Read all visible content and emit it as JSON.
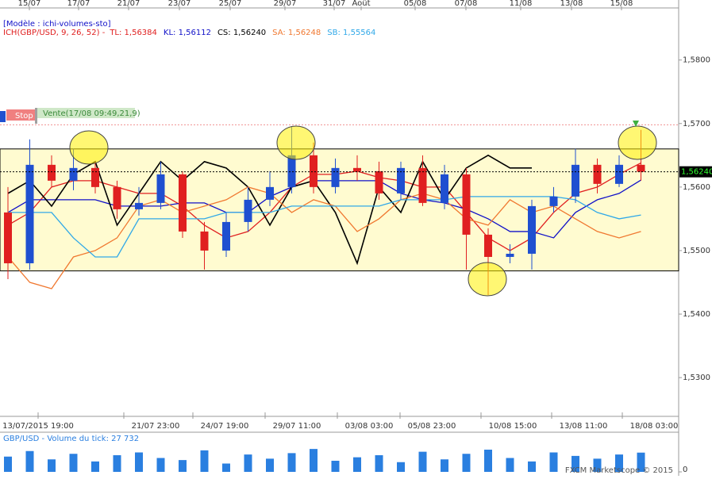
{
  "chart_data": {
    "type": "candlestick",
    "model": "[Modèle : ichi-volumes-sto]",
    "indicator": "ICH(GBP/USD, 9, 26, 52) -",
    "signal": "Vente(17/08 09:49,21,9)",
    "stop": {
      "label": "Stop",
      "value": 1.5698
    },
    "copyright": "FXCM Marketscope © 2015",
    "top_labels": [
      "15/07",
      "17/07",
      "21/07",
      "23/07",
      "25/07",
      "29/07",
      "31/07",
      "Août",
      "05/08",
      "07/08",
      "11/08",
      "13/08",
      "15/08"
    ],
    "bottom_labels": [
      "13/07/2015 19:00",
      "21/07 23:00",
      "24/07 19:00",
      "29/07 11:00",
      "03/08 03:00",
      "05/08 23:00",
      "10/08 15:00",
      "13/08 11:00",
      "18/08 03:00"
    ],
    "ylim": [
      1.5239,
      1.5882
    ],
    "yticks": [
      {
        "value": 1.53,
        "label": "1,5300"
      },
      {
        "value": 1.54,
        "label": "1,5400"
      },
      {
        "value": 1.55,
        "label": "1,5500"
      },
      {
        "value": 1.56,
        "label": "1,5600"
      },
      {
        "value": 1.57,
        "label": "1,5700"
      },
      {
        "value": 1.58,
        "label": "1,5800"
      }
    ],
    "range_box": [
      1.5468,
      1.566
    ],
    "price_label": {
      "value": 1.5624,
      "label": "1,56240"
    },
    "candles": {
      "up_color": "#1f4fd0",
      "down_color": "#e02020",
      "open": [
        1.556,
        1.548,
        1.5635,
        1.561,
        1.563,
        1.56,
        1.5565,
        1.5575,
        1.562,
        1.553,
        1.55,
        1.5545,
        1.558,
        1.56,
        1.565,
        1.56,
        1.563,
        1.5625,
        1.559,
        1.563,
        1.5575,
        1.562,
        1.5525,
        1.549,
        1.5495,
        1.557,
        1.5585,
        1.5635,
        1.5605,
        1.5635
      ],
      "high": [
        1.56,
        1.5675,
        1.565,
        1.566,
        1.564,
        1.561,
        1.56,
        1.564,
        1.5625,
        1.5545,
        1.556,
        1.56,
        1.5625,
        1.5695,
        1.567,
        1.5645,
        1.565,
        1.564,
        1.564,
        1.565,
        1.5635,
        1.563,
        1.5535,
        1.551,
        1.558,
        1.56,
        1.566,
        1.5645,
        1.565,
        1.569
      ],
      "low": [
        1.5455,
        1.547,
        1.56,
        1.5595,
        1.559,
        1.555,
        1.5555,
        1.5565,
        1.552,
        1.547,
        1.549,
        1.553,
        1.557,
        1.559,
        1.559,
        1.559,
        1.561,
        1.558,
        1.558,
        1.557,
        1.5565,
        1.547,
        1.543,
        1.548,
        1.547,
        1.556,
        1.5575,
        1.559,
        1.56,
        1.561
      ],
      "close": [
        1.548,
        1.5635,
        1.561,
        1.563,
        1.56,
        1.5565,
        1.5575,
        1.562,
        1.553,
        1.55,
        1.5545,
        1.558,
        1.56,
        1.565,
        1.56,
        1.563,
        1.5625,
        1.559,
        1.563,
        1.5575,
        1.562,
        1.5525,
        1.549,
        1.5495,
        1.557,
        1.5585,
        1.5635,
        1.5605,
        1.5635,
        1.5624
      ]
    },
    "lines": [
      {
        "name": "TL: 1,56384",
        "color": "#e02020",
        "values": [
          1.554,
          1.556,
          1.56,
          1.561,
          1.561,
          1.56,
          1.559,
          1.559,
          1.557,
          1.554,
          1.552,
          1.553,
          1.556,
          1.56,
          1.562,
          1.562,
          1.5625,
          1.5615,
          1.561,
          1.56,
          1.56,
          1.556,
          1.552,
          1.55,
          1.552,
          1.556,
          1.559,
          1.56,
          1.562,
          1.5638
        ]
      },
      {
        "name": "KL: 1,56112",
        "color": "#1010c8",
        "values": [
          1.556,
          1.558,
          1.558,
          1.558,
          1.558,
          1.557,
          1.557,
          1.557,
          1.5575,
          1.5575,
          1.556,
          1.556,
          1.5585,
          1.56,
          1.561,
          1.561,
          1.561,
          1.561,
          1.559,
          1.558,
          1.5575,
          1.5565,
          1.555,
          1.553,
          1.553,
          1.552,
          1.556,
          1.558,
          1.559,
          1.5611
        ]
      },
      {
        "name": "CS: 1,56240",
        "color": "#000000",
        "values": [
          1.559,
          1.561,
          1.557,
          1.562,
          1.564,
          1.554,
          1.559,
          1.564,
          1.561,
          1.564,
          1.563,
          1.56,
          1.554,
          1.56,
          1.561,
          1.556,
          1.548,
          1.56,
          1.556,
          1.564,
          1.558,
          1.563,
          1.565,
          1.563,
          1.563,
          null,
          null,
          null,
          null,
          null
        ]
      },
      {
        "name": "SA: 1,56248",
        "color": "#f07830",
        "values": [
          1.549,
          1.545,
          1.544,
          1.549,
          1.55,
          1.552,
          1.557,
          1.558,
          1.556,
          1.557,
          1.558,
          1.56,
          1.559,
          1.556,
          1.558,
          1.557,
          1.553,
          1.555,
          1.558,
          1.559,
          1.558,
          1.555,
          1.554,
          1.558,
          1.556,
          1.557,
          1.555,
          1.553,
          1.552,
          1.553
        ]
      },
      {
        "name": "SB: 1,55564",
        "color": "#30a8e8",
        "values": [
          1.556,
          1.556,
          1.556,
          1.552,
          1.549,
          1.549,
          1.555,
          1.555,
          1.555,
          1.555,
          1.556,
          1.556,
          1.556,
          1.557,
          1.557,
          1.557,
          1.557,
          1.557,
          1.558,
          1.558,
          1.558,
          1.5585,
          1.5585,
          1.5585,
          1.5585,
          1.5585,
          1.558,
          1.556,
          1.555,
          1.5556
        ]
      }
    ],
    "volume": {
      "title": "GBP/USD - Volume du tick: 27 732",
      "color": "#2a7fe0",
      "ylim": [
        0,
        40000
      ],
      "yticks": [
        0
      ],
      "values": [
        22000,
        30000,
        18000,
        26000,
        15000,
        24000,
        28000,
        20000,
        17000,
        31000,
        12000,
        25000,
        19000,
        27000,
        33000,
        16000,
        21000,
        24000,
        14000,
        29000,
        18000,
        26000,
        32000,
        20000,
        15000,
        28000,
        23000,
        19000,
        25000,
        27732
      ]
    }
  }
}
